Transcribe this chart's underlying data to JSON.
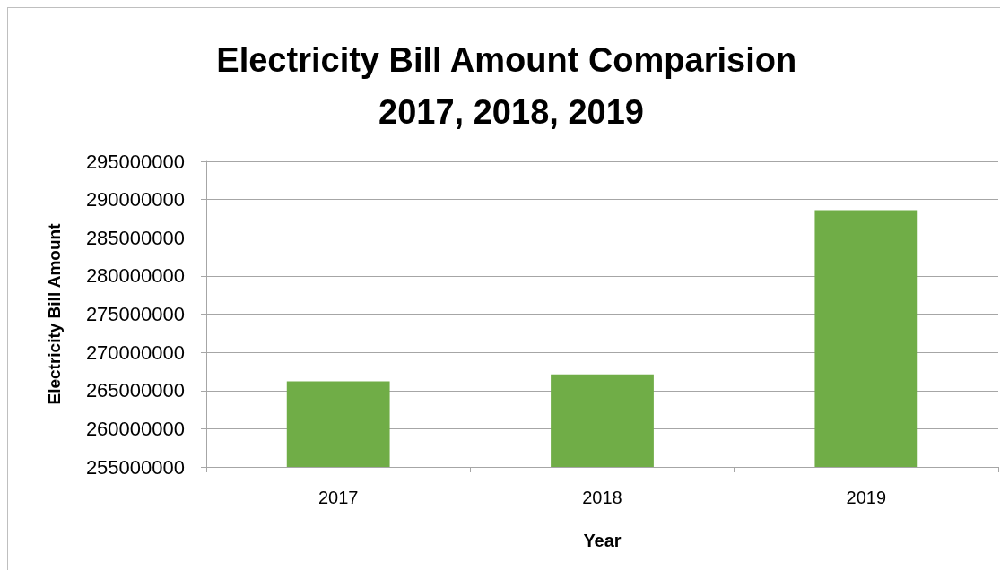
{
  "chart_data": {
    "type": "bar",
    "title": "Electricity Bill Amount Comparision 2017, 2018, 2019",
    "xlabel": "Year",
    "ylabel": "Electricity Bill Amount",
    "categories": [
      "2017",
      "2018",
      "2019"
    ],
    "values": [
      266200000,
      267100000,
      288600000
    ],
    "color": "#70ad47",
    "ylim": [
      255000000,
      295000000
    ],
    "yticks": [
      255000000,
      260000000,
      265000000,
      270000000,
      275000000,
      280000000,
      285000000,
      290000000,
      295000000
    ],
    "grid": "y"
  }
}
